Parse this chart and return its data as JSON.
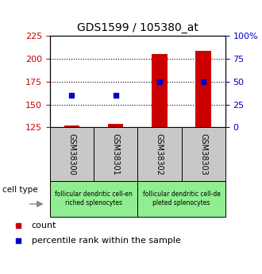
{
  "title": "GDS1599 / 105380_at",
  "samples": [
    "GSM38300",
    "GSM38301",
    "GSM38302",
    "GSM38303"
  ],
  "count_values": [
    127,
    129,
    205,
    208
  ],
  "percentile_values": [
    35,
    35,
    50,
    50
  ],
  "left_ylim": [
    125,
    225
  ],
  "left_yticks": [
    125,
    150,
    175,
    200,
    225
  ],
  "right_ylim": [
    0,
    100
  ],
  "right_yticks": [
    0,
    25,
    50,
    75,
    100
  ],
  "right_yticklabels": [
    "0",
    "25",
    "50",
    "75",
    "100%"
  ],
  "bar_base": 125,
  "count_color": "#cc0000",
  "percentile_color": "#0000cc",
  "groups": [
    {
      "label": "follicular dendritic cell-en\nriched splenocytes",
      "color": "#90ee90",
      "samples": [
        0,
        1
      ]
    },
    {
      "label": "follicular dendritic cell-de\npleted splenocytes",
      "color": "#90ee90",
      "samples": [
        2,
        3
      ]
    }
  ],
  "cell_type_label": "cell type",
  "legend_count_label": "count",
  "legend_percentile_label": "percentile rank within the sample",
  "tick_label_color_left": "#cc0000",
  "tick_label_color_right": "#0000cc",
  "bar_width": 0.35,
  "gridlines": [
    150,
    175,
    200
  ]
}
